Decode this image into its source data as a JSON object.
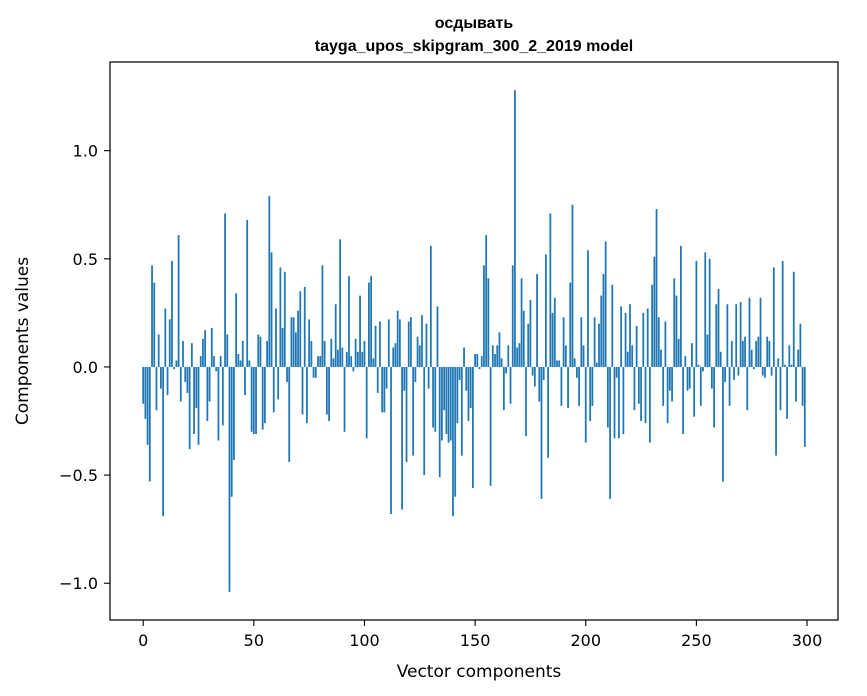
{
  "chart_data": {
    "type": "bar",
    "title": "осдывать",
    "subtitle": "tayga_upos_skipgram_300_2_2019 model",
    "xlabel": "Vector components",
    "ylabel": "Components values",
    "xlim": [
      -15,
      314
    ],
    "ylim": [
      -1.17,
      1.41
    ],
    "xticks": [
      0,
      50,
      100,
      150,
      200,
      250,
      300
    ],
    "xtick_labels": [
      "0",
      "50",
      "100",
      "150",
      "200",
      "250",
      "300"
    ],
    "yticks": [
      -1.0,
      -0.5,
      0.0,
      0.5,
      1.0
    ],
    "ytick_labels": [
      "−1.0",
      "−0.5",
      "0.0",
      "0.5",
      "1.0"
    ],
    "grid": false,
    "bar_color": "#1f77b4",
    "x": "0..299 (component index)",
    "values": [
      -0.17,
      -0.24,
      -0.36,
      -0.53,
      0.47,
      0.39,
      -0.2,
      0.15,
      -0.1,
      -0.69,
      0.27,
      -0.13,
      0.22,
      0.49,
      -0.01,
      0.03,
      0.61,
      -0.16,
      0.12,
      -0.07,
      -0.12,
      -0.38,
      0.11,
      -0.31,
      -0.19,
      -0.36,
      0.05,
      0.13,
      0.17,
      -0.25,
      -0.16,
      0.18,
      0.05,
      -0.02,
      -0.34,
      0.05,
      -0.27,
      0.71,
      0.15,
      -1.04,
      -0.6,
      -0.43,
      0.34,
      0.06,
      0.03,
      0.12,
      -0.13,
      0.68,
      0.03,
      -0.3,
      -0.31,
      -0.31,
      0.15,
      0.14,
      -0.29,
      -0.26,
      0.12,
      0.79,
      0.53,
      -0.21,
      0.27,
      -0.15,
      0.46,
      0.18,
      0.44,
      -0.07,
      -0.44,
      0.23,
      0.23,
      0.16,
      0.26,
      0.35,
      -0.22,
      0.37,
      -0.26,
      0.22,
      0.12,
      -0.05,
      -0.05,
      0.05,
      0.05,
      0.47,
      0.12,
      -0.22,
      -0.25,
      0.13,
      0.04,
      0.29,
      0.08,
      0.59,
      0.09,
      -0.3,
      0.07,
      0.42,
      0.05,
      -0.02,
      0.13,
      0.07,
      0.33,
      0.07,
      0.12,
      -0.33,
      0.39,
      0.42,
      0.04,
      0.19,
      -0.12,
      0.21,
      -0.21,
      -0.21,
      -0.1,
      0.22,
      -0.68,
      0.09,
      0.11,
      0.26,
      0.22,
      -0.66,
      -0.11,
      -0.44,
      0.21,
      0.23,
      -0.41,
      -0.07,
      0.14,
      0.1,
      0.24,
      -0.5,
      0.2,
      -0.1,
      0.56,
      -0.28,
      -0.3,
      0.28,
      -0.51,
      -0.34,
      -0.2,
      -0.31,
      -0.35,
      -0.34,
      -0.69,
      -0.6,
      -0.26,
      -0.06,
      -0.41,
      0.09,
      -0.11,
      -0.25,
      -0.19,
      -0.56,
      0.06,
      0.06,
      -0.01,
      0.05,
      0.47,
      0.61,
      0.41,
      -0.55,
      0.1,
      0.06,
      0.1,
      0.16,
      0.04,
      -0.2,
      -0.03,
      0.1,
      -0.17,
      0.47,
      1.28,
      0.09,
      0.11,
      0.41,
      0.26,
      -0.32,
      0.2,
      0.31,
      -0.04,
      -0.09,
      0.43,
      -0.16,
      -0.61,
      -0.06,
      0.52,
      -0.42,
      0.71,
      0.25,
      0.32,
      0.03,
      0.03,
      -0.18,
      0.23,
      0.1,
      -0.19,
      0.39,
      0.75,
      0.04,
      -0.05,
      -0.18,
      0.23,
      0.1,
      -0.35,
      0.54,
      -0.25,
      -0.18,
      0.23,
      0.02,
      0.2,
      0.33,
      0.43,
      0.58,
      -0.28,
      -0.61,
      0.38,
      -0.33,
      -0.05,
      -0.33,
      0.28,
      -0.31,
      0.25,
      0.07,
      0.29,
      0.1,
      -0.2,
      0.19,
      -0.17,
      -0.25,
      0.25,
      -0.26,
      0.27,
      -0.35,
      0.38,
      0.51,
      0.73,
      0.23,
      0.08,
      -0.18,
      0.21,
      -0.26,
      -0.11,
      -0.16,
      0.41,
      0.33,
      0.13,
      0.56,
      -0.31,
      0.05,
      -0.11,
      -0.1,
      0.11,
      -0.23,
      0.49,
      0.01,
      -0.18,
      -0.02,
      0.53,
      0.15,
      0.5,
      -0.1,
      -0.28,
      0.29,
      0.36,
      0.07,
      -0.53,
      -0.07,
      0.29,
      -0.18,
      0.12,
      -0.06,
      0.29,
      -0.04,
      0.3,
      0.12,
      0.14,
      -0.2,
      0.32,
      0.08,
      -0.01,
      0.12,
      0.14,
      0.32,
      -0.04,
      -0.05,
      0.14,
      0.12,
      -0.04,
      0.46,
      -0.41,
      0.04,
      -0.2,
      0.49,
      0.01,
      -0.24,
      0.1,
      0.01,
      0.44,
      -0.16,
      0.08,
      0.2,
      -0.18,
      -0.37
    ]
  }
}
